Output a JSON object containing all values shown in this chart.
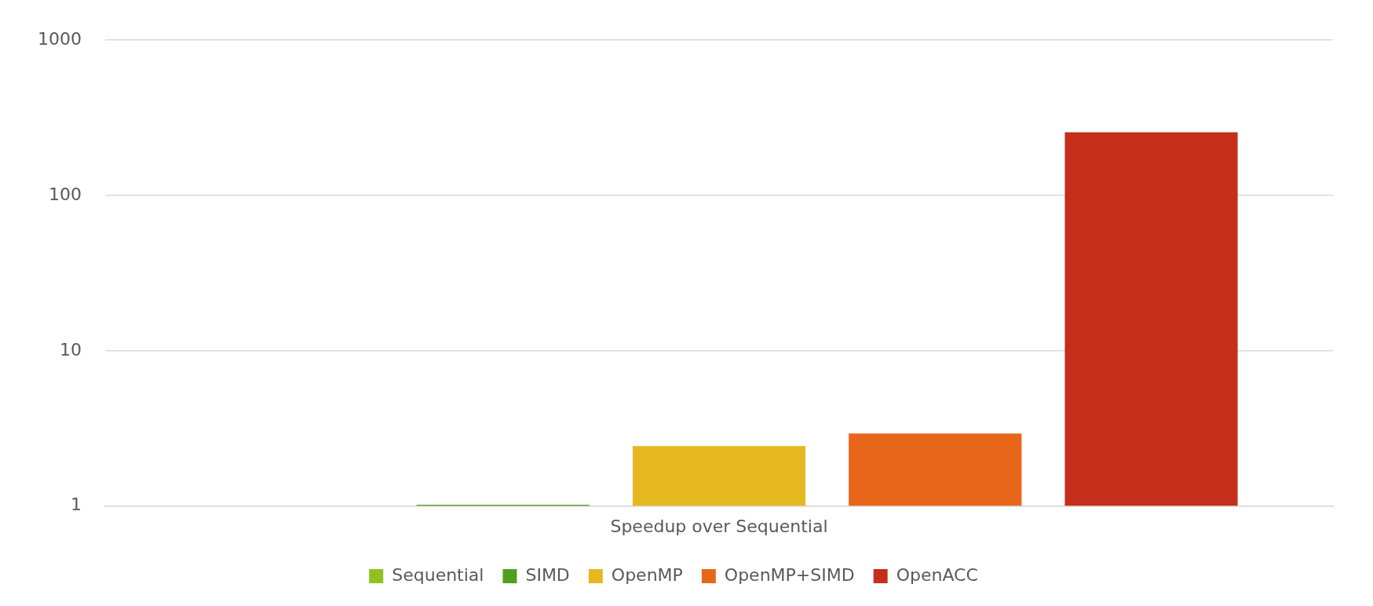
{
  "chart_data": {
    "type": "bar",
    "categories": [
      "Speedup over Sequential"
    ],
    "series": [
      {
        "name": "Sequential",
        "color": "#8dc21f",
        "values": [
          1
        ]
      },
      {
        "name": "SIMD",
        "color": "#4fa01f",
        "values": [
          1.02
        ]
      },
      {
        "name": "OpenMP",
        "color": "#e5b81f",
        "values": [
          2.43
        ]
      },
      {
        "name": "OpenMP+SIMD",
        "color": "#e86619",
        "values": [
          2.93
        ]
      },
      {
        "name": "OpenACC",
        "color": "#c52e1a",
        "values": [
          255
        ]
      }
    ],
    "log": "y",
    "ylim": [
      1,
      1000
    ],
    "yticks": [
      1,
      10,
      100,
      1000
    ],
    "grid": "y",
    "legend": "bottom"
  }
}
